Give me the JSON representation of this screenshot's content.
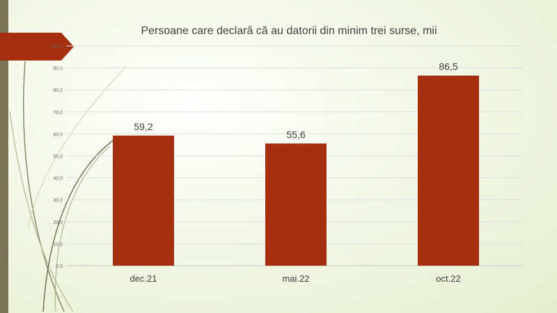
{
  "chart_data": {
    "type": "bar",
    "title": "Persoane care declară că au datorii din minim trei surse, mii",
    "categories": [
      "dec.21",
      "mai.22",
      "oct.22"
    ],
    "values": [
      59.2,
      55.6,
      86.5
    ],
    "data_labels": [
      "59,2",
      "55,6",
      "86,5"
    ],
    "y_ticks": [
      "0,0",
      "10,0",
      "20,0",
      "30,0",
      "40,0",
      "50,0",
      "60,0",
      "70,0",
      "80,0",
      "90,0",
      "100,0"
    ],
    "ylim": [
      0,
      100
    ],
    "grid": true,
    "bar_color": "#a53011"
  },
  "decoration": {
    "sidebar_color": "#7a7356",
    "tab_color": "#a53011"
  }
}
